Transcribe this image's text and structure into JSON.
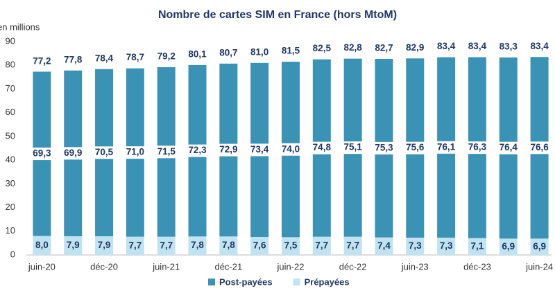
{
  "chart_data": {
    "type": "stacked_bar",
    "title": "Nombre de cartes SIM en France (hors MtoM)",
    "y_label": "en millions",
    "categories": [
      "juin-20",
      null,
      "déc-20",
      null,
      "juin-21",
      null,
      "déc-21",
      null,
      "juin-22",
      null,
      "déc-22",
      null,
      "juin-23",
      null,
      "déc-23",
      null,
      "juin-24"
    ],
    "series": [
      {
        "name": "Post-payées",
        "color": "#3a93b4",
        "values": [
          69.3,
          69.9,
          70.5,
          71.0,
          71.5,
          72.3,
          72.9,
          73.4,
          74.0,
          74.8,
          75.1,
          75.3,
          75.6,
          76.1,
          76.3,
          76.4,
          76.6
        ],
        "value_labels": [
          "69,3",
          "69,9",
          "70,5",
          "71,0",
          "71,5",
          "72,3",
          "72,9",
          "73,4",
          "74,0",
          "74,8",
          "75,1",
          "75,3",
          "75,6",
          "76,1",
          "76,3",
          "76,4",
          "76,6"
        ]
      },
      {
        "name": "Prépayées",
        "color": "#bfe3f0",
        "values": [
          8.0,
          7.9,
          7.9,
          7.7,
          7.7,
          7.8,
          7.8,
          7.6,
          7.5,
          7.7,
          7.7,
          7.4,
          7.3,
          7.3,
          7.1,
          6.9,
          6.9
        ],
        "value_labels": [
          "8,0",
          "7,9",
          "7,9",
          "7,7",
          "7,7",
          "7,8",
          "7,8",
          "7,6",
          "7,5",
          "7,7",
          "7,7",
          "7,4",
          "7,3",
          "7,3",
          "7,1",
          "6,9",
          "6,9"
        ]
      }
    ],
    "totals": {
      "values": [
        77.2,
        77.8,
        78.4,
        78.7,
        79.2,
        80.1,
        80.7,
        81.0,
        81.5,
        82.5,
        82.8,
        82.7,
        82.9,
        83.4,
        83.4,
        83.3,
        83.4
      ],
      "value_labels": [
        "77,2",
        "77,8",
        "78,4",
        "78,7",
        "79,2",
        "80,1",
        "80,7",
        "81,0",
        "81,5",
        "82,5",
        "82,8",
        "82,7",
        "82,9",
        "83,4",
        "83,4",
        "83,3",
        "83,4"
      ]
    },
    "ylim": [
      0,
      90
    ],
    "yticks": [
      0,
      10,
      20,
      30,
      40,
      50,
      60,
      70,
      80,
      90
    ],
    "grid": false,
    "legend": "bottom"
  }
}
